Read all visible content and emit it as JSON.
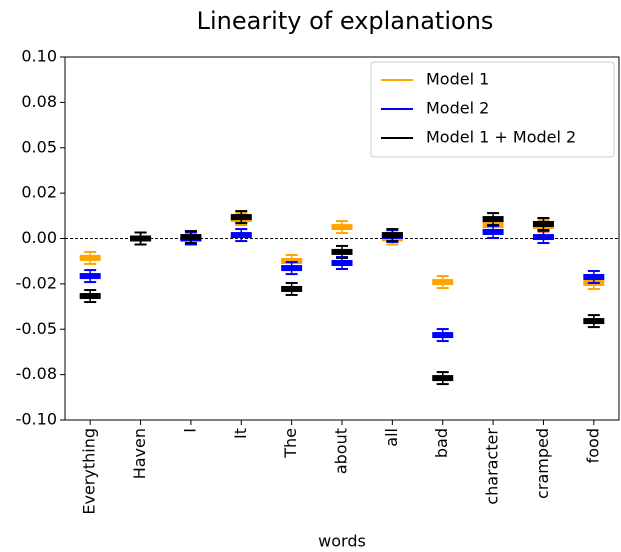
{
  "chart_data": {
    "type": "box",
    "title": "Linearity of explanations",
    "x_label": "words",
    "categories": [
      "Everything",
      "Haven",
      "I",
      "It",
      "The",
      "about",
      "all",
      "bad",
      "character",
      "cramped",
      "food"
    ],
    "series": [
      {
        "name": "Model 1",
        "color": "orange",
        "values": [
          -0.0107,
          0,
          0,
          0.0107,
          -0.0124,
          0.0063,
          0,
          -0.024,
          0.0074,
          0.0069,
          -0.0245
        ]
      },
      {
        "name": "Model 2",
        "color": "blue",
        "values": [
          -0.0207,
          0,
          0,
          0.0019,
          -0.0163,
          -0.0135,
          0.0014,
          -0.0532,
          0.0036,
          0.0008,
          -0.0212
        ]
      },
      {
        "name": "Model 1 + Model 2",
        "color": "black",
        "values": [
          -0.0317,
          0,
          0.0008,
          0.0118,
          -0.0278,
          -0.0074,
          0.0019,
          -0.0769,
          0.0107,
          0.008,
          -0.0455
        ]
      }
    ],
    "ylim": [
      -0.1,
      0.1
    ],
    "yticks": [
      {
        "value": -0.1,
        "label": "-0.10"
      },
      {
        "value": -0.075,
        "label": "-0.08"
      },
      -0.05,
      {
        "value": -0.025,
        "label": "-0.02"
      },
      {
        "value": 0,
        "label": "0.00"
      },
      {
        "value": 0.025,
        "label": "0.02"
      },
      0.05,
      {
        "value": 0.075,
        "label": "0.08"
      },
      {
        "value": 0.1,
        "label": "0.10"
      }
    ],
    "reference_line": 0,
    "legend": "upper right"
  }
}
